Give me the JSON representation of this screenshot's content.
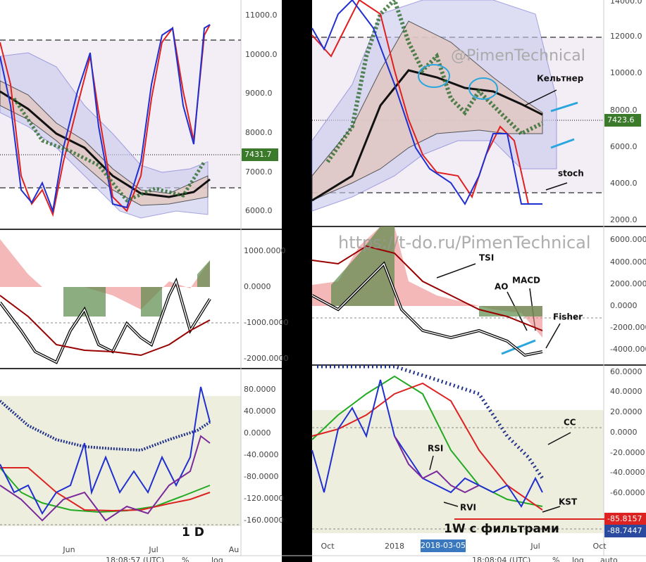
{
  "left": {
    "price_axis": [
      "11000.0",
      "10000.0",
      "9000.0",
      "8000.0",
      "7000.0",
      "6000.0"
    ],
    "price_tag": "7431.7",
    "osc_axis": [
      "1000.0000",
      "0.0000",
      "-1000.0000",
      "-2000.0000"
    ],
    "cc_axis": [
      "80.0000",
      "40.0000",
      "0.0000",
      "-40.0000",
      "-80.0000",
      "-120.0000",
      "-160.0000"
    ],
    "time_axis": [
      "Jun",
      "Jul",
      "Au"
    ],
    "timeframe": "1 D",
    "clock": "18:08:57 (UTC)",
    "toolbar": [
      "%",
      "log"
    ]
  },
  "right": {
    "price_axis": [
      "14000.0",
      "12000.0",
      "10000.0",
      "8000.0",
      "6000.0",
      "4000.0",
      "2000.0"
    ],
    "price_tag": "7423.6",
    "osc_axis": [
      "6000.0000",
      "4000.0000",
      "2000.0000",
      "0.0000",
      "-2000.0000",
      "-4000.0000"
    ],
    "cc_axis": [
      "60.0000",
      "40.0000",
      "20.0000",
      "0.0000",
      "-20.0000",
      "-40.0000",
      "-60.0000"
    ],
    "cc_tags": [
      "-85.8157",
      "-88.7447"
    ],
    "time_axis": [
      "Oct",
      "2018",
      "Jul",
      "Oct"
    ],
    "time_cursor": "2018-03-05",
    "watermark": "@PimenTechnical",
    "url": "https://t-do.ru/PimenTechnical",
    "annotations": {
      "keltner": "Кельтнер",
      "stoch": "stoch",
      "tsi": "TSI",
      "ao": "AO",
      "macd": "MACD",
      "fisher": "Fisher",
      "rsi": "RSI",
      "rvi": "RVI",
      "kst": "KST",
      "cc": "CC"
    },
    "timeframe": "1W  с фильтрами",
    "clock": "18:08:04 (UTC)",
    "toolbar": [
      "%",
      "log",
      "auto"
    ]
  }
}
